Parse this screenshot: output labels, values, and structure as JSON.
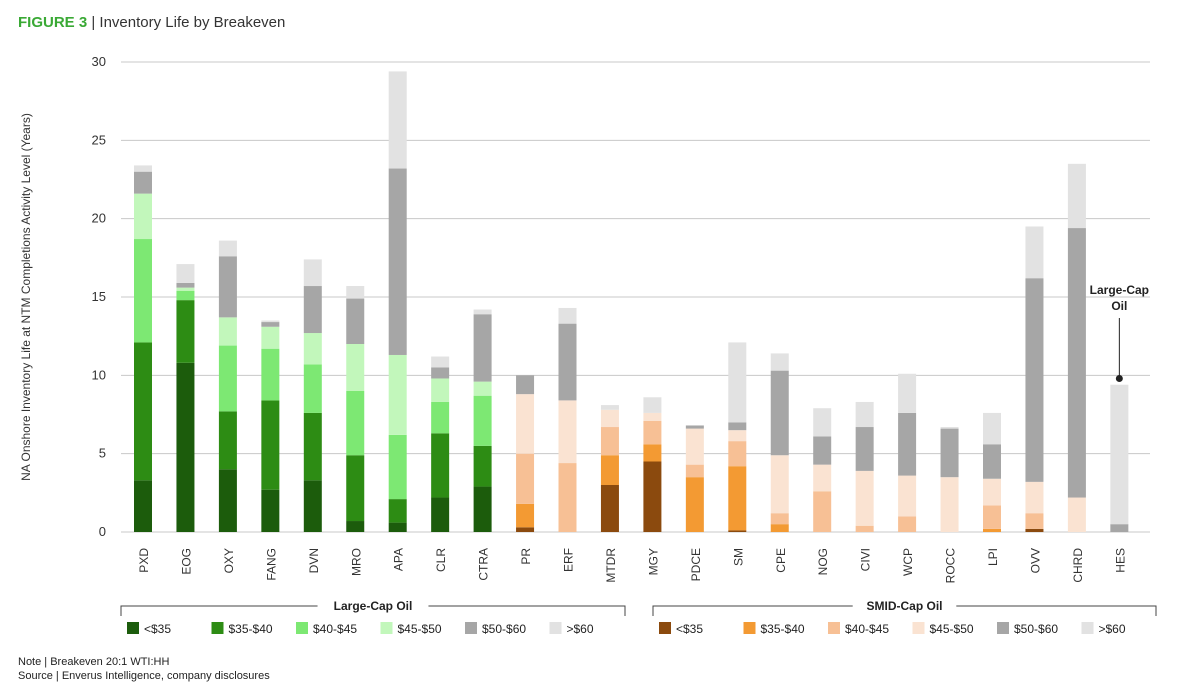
{
  "figure": {
    "label": "FIGURE 3",
    "separator": " | ",
    "title": "Inventory Life by Breakeven"
  },
  "notes": {
    "note": "Note | Breakeven 20:1 WTI:HH",
    "source": "Source | Enverus Intelligence, company disclosures"
  },
  "chart_data": {
    "type": "bar",
    "stacked": true,
    "ylabel": "NA Onshore Inventory Life at NTM Completions Activity Level (Years)",
    "ylim": [
      0,
      30
    ],
    "yticks": [
      0,
      5,
      10,
      15,
      20,
      25,
      30
    ],
    "grid": true,
    "legend_placement": "bottom",
    "categories": [
      "PXD",
      "EOG",
      "OXY",
      "FANG",
      "DVN",
      "MRO",
      "APA",
      "CLR",
      "CTRA",
      "PR",
      "ERF",
      "MTDR",
      "MGY",
      "PDCE",
      "SM",
      "CPE",
      "NOG",
      "CIVI",
      "WCP",
      "ROCC",
      "LPI",
      "OVV",
      "CHRD",
      "HES"
    ],
    "groups": [
      {
        "name": "Large-Cap Oil",
        "categories": [
          "PXD",
          "EOG",
          "OXY",
          "FANG",
          "DVN",
          "MRO",
          "APA",
          "CLR",
          "CTRA"
        ],
        "palette": [
          "#1c5c0c",
          "#2d8c14",
          "#7de873",
          "#c2f7bb",
          "#a6a6a6",
          "#e2e2e2"
        ]
      },
      {
        "name": "SMID-Cap Oil",
        "categories": [
          "PR",
          "ERF",
          "MTDR",
          "MGY",
          "PDCE",
          "SM",
          "CPE",
          "NOG",
          "CIVI",
          "WCP",
          "ROCC",
          "LPI",
          "OVV",
          "CHRD",
          "HES"
        ],
        "palette": [
          "#8b4a0e",
          "#f39a33",
          "#f7c095",
          "#fae3d2",
          "#a6a6a6",
          "#e2e2e2"
        ]
      }
    ],
    "series": [
      {
        "name": "<$35",
        "values": [
          3.3,
          10.8,
          4.0,
          2.7,
          3.3,
          0.7,
          0.6,
          2.2,
          2.9,
          0.3,
          0.0,
          3.0,
          4.5,
          0.0,
          0.1,
          0.0,
          0.0,
          0.0,
          0.0,
          0.0,
          0.0,
          0.2,
          0.0,
          0.0
        ]
      },
      {
        "name": "$35-$40",
        "values": [
          8.8,
          4.0,
          3.7,
          5.7,
          4.3,
          4.2,
          1.5,
          4.1,
          2.6,
          1.5,
          0.0,
          1.9,
          1.1,
          3.5,
          4.1,
          0.5,
          0.0,
          0.0,
          0.0,
          0.0,
          0.2,
          0.0,
          0.0,
          0.0
        ]
      },
      {
        "name": "$40-$45",
        "values": [
          6.6,
          0.6,
          4.2,
          3.3,
          3.1,
          4.1,
          4.1,
          2.0,
          3.2,
          3.2,
          4.4,
          1.8,
          1.5,
          0.8,
          1.6,
          0.7,
          2.6,
          0.4,
          1.0,
          0.0,
          1.5,
          1.0,
          0.0,
          0.0
        ]
      },
      {
        "name": "$45-$50",
        "values": [
          2.9,
          0.2,
          1.8,
          1.4,
          2.0,
          3.0,
          5.1,
          1.5,
          0.9,
          3.8,
          4.0,
          1.1,
          0.5,
          2.3,
          0.7,
          3.7,
          1.7,
          3.5,
          2.6,
          3.5,
          1.7,
          2.0,
          2.2,
          0.0
        ]
      },
      {
        "name": "$50-$60",
        "values": [
          1.4,
          0.3,
          3.9,
          0.3,
          3.0,
          2.9,
          11.9,
          0.7,
          4.3,
          1.2,
          4.9,
          0.0,
          0.0,
          0.2,
          0.5,
          5.4,
          1.8,
          2.8,
          4.0,
          3.1,
          2.2,
          13.0,
          17.2,
          0.5
        ]
      },
      {
        "name": ">$60",
        "values": [
          0.4,
          1.2,
          1.0,
          0.1,
          1.7,
          0.8,
          6.2,
          0.7,
          0.3,
          0.0,
          1.0,
          0.3,
          1.0,
          0.0,
          5.1,
          1.1,
          1.8,
          1.6,
          2.5,
          0.1,
          2.0,
          3.3,
          4.1,
          8.9
        ]
      }
    ],
    "annotation": {
      "text_line1": "Large-Cap",
      "text_line2": "Oil",
      "category": "HES",
      "value": 9.8
    }
  }
}
